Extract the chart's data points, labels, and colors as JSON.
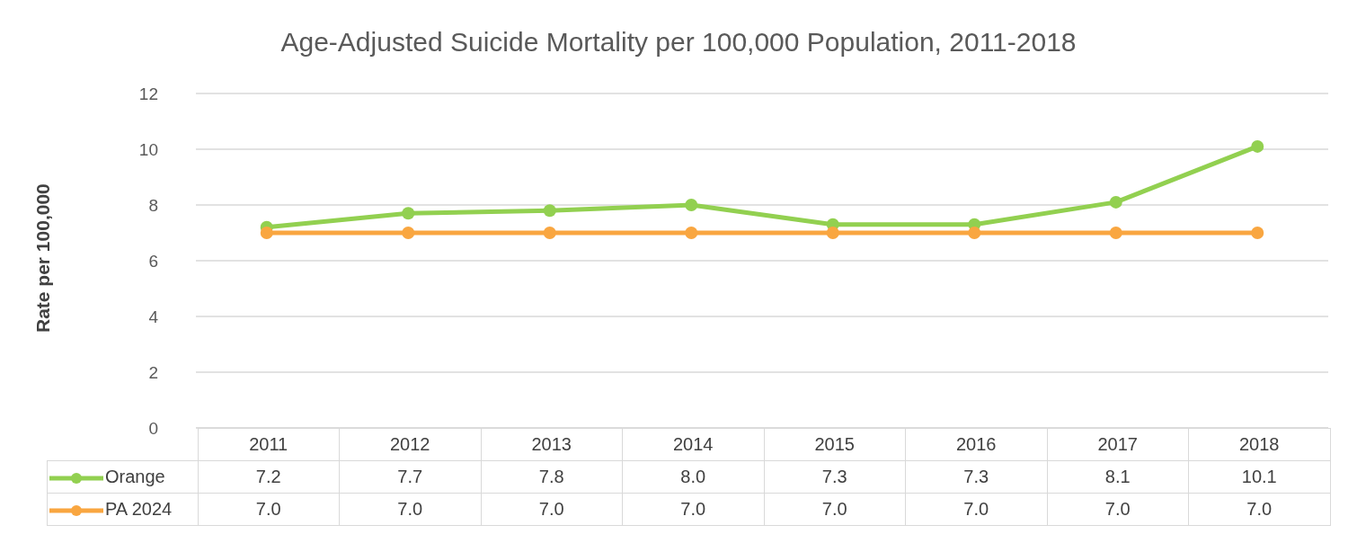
{
  "chart_data": {
    "type": "line",
    "title": "Age-Adjusted Suicide Mortality per 100,000 Population, 2011-2018",
    "ylabel": "Rate per 100,000",
    "categories": [
      "2011",
      "2012",
      "2013",
      "2014",
      "2015",
      "2016",
      "2017",
      "2018"
    ],
    "series": [
      {
        "name": "Orange",
        "color": "#92d050",
        "values": [
          7.2,
          7.7,
          7.8,
          8.0,
          7.3,
          7.3,
          8.1,
          10.1
        ],
        "value_labels": [
          "7.2",
          "7.7",
          "7.8",
          "8.0",
          "7.3",
          "7.3",
          "8.1",
          "10.1"
        ]
      },
      {
        "name": "PA 2024",
        "color": "#f9a640",
        "values": [
          7.0,
          7.0,
          7.0,
          7.0,
          7.0,
          7.0,
          7.0,
          7.0
        ],
        "value_labels": [
          "7.0",
          "7.0",
          "7.0",
          "7.0",
          "7.0",
          "7.0",
          "7.0",
          "7.0"
        ]
      }
    ],
    "ylim": [
      0,
      12
    ],
    "yticks": [
      0,
      2,
      4,
      6,
      8,
      10,
      12
    ],
    "grid": "y",
    "legend": "bottom",
    "marker": "circle",
    "line_style": "solid"
  }
}
